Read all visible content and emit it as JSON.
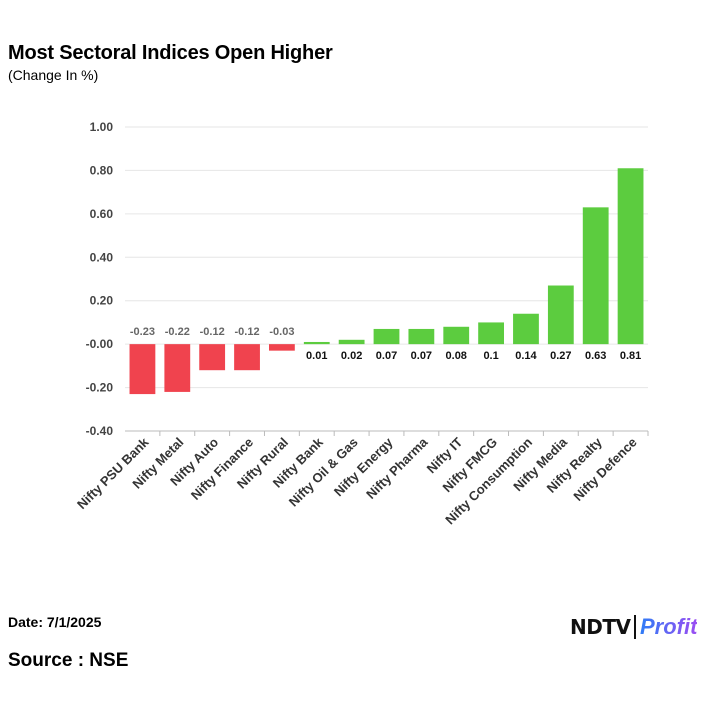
{
  "title": "Most Sectoral Indices Open Higher",
  "subtitle": "(Change In %)",
  "date_text": "Date: 7/1/2025",
  "source_text": "Source : NSE",
  "logo": {
    "brand": "NDTV",
    "product": "Profit"
  },
  "colors": {
    "positive": "#5ccc3f",
    "negative": "#f0434e",
    "grid": "#e6e6e6",
    "axis": "#bbbbbb"
  },
  "chart_data": {
    "type": "bar",
    "title": "Most Sectoral Indices Open Higher",
    "subtitle": "(Change In %)",
    "xlabel": "",
    "ylabel": "",
    "ylim": [
      -0.4,
      1.0
    ],
    "yticks": [
      1.0,
      0.8,
      0.6,
      0.4,
      0.2,
      0.0,
      -0.2,
      -0.4
    ],
    "ytick_labels": [
      "1.00",
      "0.80",
      "0.60",
      "0.40",
      "0.20",
      "-0.00",
      "-0.20",
      "-0.40"
    ],
    "grid": true,
    "categories": [
      "Nifty PSU Bank",
      "Nifty Metal",
      "Nifty Auto",
      "Nifty Finance",
      "Nifty Rural",
      "Nifty Bank",
      "Nifty Oil & Gas",
      "Nifty Energy",
      "Nifty Pharma",
      "Nifty IT",
      "Nifty FMCG",
      "Nifty Consumption",
      "Nifty Media",
      "Nifty Realty",
      "Nifty Defence"
    ],
    "values": [
      -0.23,
      -0.22,
      -0.12,
      -0.12,
      -0.03,
      0.01,
      0.02,
      0.07,
      0.07,
      0.08,
      0.1,
      0.14,
      0.27,
      0.63,
      0.81
    ],
    "value_labels": [
      "-0.23",
      "-0.22",
      "-0.12",
      "-0.12",
      "-0.03",
      "0.01",
      "0.02",
      "0.07",
      "0.07",
      "0.08",
      "0.1",
      "0.14",
      "0.27",
      "0.63",
      "0.81"
    ]
  }
}
